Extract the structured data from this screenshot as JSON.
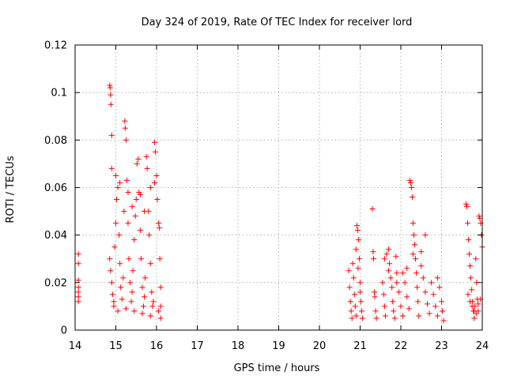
{
  "chart_data": {
    "type": "scatter",
    "title": "Day 324 of 2019, Rate Of TEC Index for receiver lord",
    "xlabel": "GPS time / hours",
    "ylabel": "ROTI / TECUs",
    "xlim": [
      14,
      24
    ],
    "ylim": [
      0,
      0.12
    ],
    "grid": true,
    "marker": "+",
    "x_ticks": [
      "14",
      "15",
      "16",
      "17",
      "18",
      "19",
      "20",
      "21",
      "22",
      "23",
      "24"
    ],
    "y_ticks": [
      "0",
      "0.02",
      "0.04",
      "0.06",
      "0.08",
      "0.1",
      "0.12"
    ],
    "colors": {
      "series": "#ff0000",
      "grid": "#a0a0a0",
      "axis": "#000000"
    },
    "series": [
      {
        "points": [
          [
            14.08,
            0.032
          ],
          [
            14.08,
            0.028
          ],
          [
            14.08,
            0.021
          ],
          [
            14.08,
            0.018
          ],
          [
            14.08,
            0.016
          ],
          [
            14.08,
            0.014
          ],
          [
            14.08,
            0.012
          ],
          [
            14.85,
            0.103
          ],
          [
            14.86,
            0.102
          ],
          [
            14.87,
            0.099
          ],
          [
            14.88,
            0.095
          ],
          [
            14.9,
            0.082
          ],
          [
            14.85,
            0.03
          ],
          [
            14.87,
            0.025
          ],
          [
            14.9,
            0.02
          ],
          [
            14.92,
            0.015
          ],
          [
            14.95,
            0.012
          ],
          [
            14.97,
            0.035
          ],
          [
            15.0,
            0.045
          ],
          [
            15.02,
            0.055
          ],
          [
            15.05,
            0.06
          ],
          [
            15.08,
            0.04
          ],
          [
            15.1,
            0.028
          ],
          [
            15.12,
            0.018
          ],
          [
            15.15,
            0.013
          ],
          [
            15.18,
            0.022
          ],
          [
            15.2,
            0.05
          ],
          [
            15.22,
            0.088
          ],
          [
            15.23,
            0.085
          ],
          [
            15.25,
            0.08
          ],
          [
            15.27,
            0.063
          ],
          [
            15.3,
            0.045
          ],
          [
            15.32,
            0.03
          ],
          [
            15.35,
            0.02
          ],
          [
            15.38,
            0.012
          ],
          [
            15.4,
            0.016
          ],
          [
            15.42,
            0.025
          ],
          [
            15.45,
            0.038
          ],
          [
            15.48,
            0.048
          ],
          [
            15.5,
            0.055
          ],
          [
            15.52,
            0.07
          ],
          [
            15.55,
            0.072
          ],
          [
            15.57,
            0.058
          ],
          [
            15.6,
            0.042
          ],
          [
            15.62,
            0.03
          ],
          [
            15.65,
            0.018
          ],
          [
            15.68,
            0.01
          ],
          [
            15.7,
            0.014
          ],
          [
            15.72,
            0.022
          ],
          [
            15.75,
            0.073
          ],
          [
            15.77,
            0.068
          ],
          [
            15.8,
            0.05
          ],
          [
            15.82,
            0.04
          ],
          [
            15.85,
            0.028
          ],
          [
            15.88,
            0.016
          ],
          [
            15.9,
            0.01
          ],
          [
            15.92,
            0.012
          ],
          [
            15.95,
            0.079
          ],
          [
            15.97,
            0.075
          ],
          [
            16.0,
            0.065
          ],
          [
            16.02,
            0.055
          ],
          [
            16.05,
            0.045
          ],
          [
            16.07,
            0.043
          ],
          [
            16.08,
            0.03
          ],
          [
            16.1,
            0.018
          ],
          [
            16.1,
            0.01
          ],
          [
            16.1,
            0.005
          ],
          [
            14.9,
            0.068
          ],
          [
            15.0,
            0.065
          ],
          [
            15.1,
            0.062
          ],
          [
            15.3,
            0.058
          ],
          [
            15.4,
            0.052
          ],
          [
            15.6,
            0.057
          ],
          [
            15.7,
            0.05
          ],
          [
            15.85,
            0.06
          ],
          [
            15.95,
            0.062
          ],
          [
            14.95,
            0.01
          ],
          [
            15.05,
            0.008
          ],
          [
            15.25,
            0.009
          ],
          [
            15.45,
            0.008
          ],
          [
            15.65,
            0.007
          ],
          [
            15.85,
            0.006
          ],
          [
            16.05,
            0.008
          ],
          [
            20.72,
            0.025
          ],
          [
            20.74,
            0.018
          ],
          [
            20.76,
            0.012
          ],
          [
            20.78,
            0.008
          ],
          [
            20.8,
            0.005
          ],
          [
            20.82,
            0.028
          ],
          [
            20.84,
            0.022
          ],
          [
            20.86,
            0.015
          ],
          [
            20.88,
            0.01
          ],
          [
            20.9,
            0.006
          ],
          [
            20.92,
            0.044
          ],
          [
            20.94,
            0.042
          ],
          [
            20.96,
            0.038
          ],
          [
            20.98,
            0.03
          ],
          [
            21.0,
            0.02
          ],
          [
            21.02,
            0.012
          ],
          [
            21.04,
            0.008
          ],
          [
            21.06,
            0.005
          ],
          [
            20.9,
            0.034
          ],
          [
            20.95,
            0.026
          ],
          [
            21.0,
            0.016
          ],
          [
            21.3,
            0.051
          ],
          [
            21.32,
            0.033
          ],
          [
            21.33,
            0.03
          ],
          [
            21.35,
            0.016
          ],
          [
            21.36,
            0.014
          ],
          [
            21.38,
            0.008
          ],
          [
            21.4,
            0.005
          ],
          [
            21.55,
            0.02
          ],
          [
            21.58,
            0.015
          ],
          [
            21.6,
            0.01
          ],
          [
            21.62,
            0.006
          ],
          [
            21.65,
            0.032
          ],
          [
            21.7,
            0.034
          ],
          [
            21.72,
            0.028
          ],
          [
            21.75,
            0.022
          ],
          [
            21.78,
            0.018
          ],
          [
            21.8,
            0.012
          ],
          [
            21.82,
            0.008
          ],
          [
            21.85,
            0.005
          ],
          [
            21.88,
            0.031
          ],
          [
            21.9,
            0.024
          ],
          [
            21.95,
            0.016
          ],
          [
            22.0,
            0.01
          ],
          [
            22.05,
            0.006
          ],
          [
            22.1,
            0.02
          ],
          [
            22.15,
            0.014
          ],
          [
            22.2,
            0.009
          ],
          [
            22.22,
            0.063
          ],
          [
            22.24,
            0.062
          ],
          [
            22.26,
            0.06
          ],
          [
            22.28,
            0.056
          ],
          [
            22.3,
            0.045
          ],
          [
            22.32,
            0.04
          ],
          [
            22.34,
            0.036
          ],
          [
            22.36,
            0.03
          ],
          [
            22.38,
            0.024
          ],
          [
            22.4,
            0.018
          ],
          [
            22.42,
            0.012
          ],
          [
            22.44,
            0.006
          ],
          [
            22.5,
            0.027
          ],
          [
            22.55,
            0.022
          ],
          [
            22.6,
            0.016
          ],
          [
            22.65,
            0.011
          ],
          [
            22.6,
            0.04
          ],
          [
            22.7,
            0.007
          ],
          [
            22.75,
            0.02
          ],
          [
            22.8,
            0.015
          ],
          [
            22.85,
            0.01
          ],
          [
            22.9,
            0.006
          ],
          [
            22.95,
            0.018
          ],
          [
            23.0,
            0.012
          ],
          [
            23.02,
            0.008
          ],
          [
            23.05,
            0.004
          ],
          [
            22.15,
            0.026
          ],
          [
            22.3,
            0.032
          ],
          [
            22.5,
            0.033
          ],
          [
            22.9,
            0.022
          ],
          [
            21.6,
            0.03
          ],
          [
            21.7,
            0.025
          ],
          [
            21.9,
            0.02
          ],
          [
            22.05,
            0.024
          ],
          [
            23.6,
            0.053
          ],
          [
            23.62,
            0.052
          ],
          [
            23.64,
            0.045
          ],
          [
            23.66,
            0.038
          ],
          [
            23.68,
            0.032
          ],
          [
            23.7,
            0.027
          ],
          [
            23.72,
            0.022
          ],
          [
            23.74,
            0.017
          ],
          [
            23.76,
            0.012
          ],
          [
            23.78,
            0.008
          ],
          [
            23.8,
            0.005
          ],
          [
            23.82,
            0.01
          ],
          [
            23.84,
            0.03
          ],
          [
            23.86,
            0.02
          ],
          [
            23.88,
            0.013
          ],
          [
            23.9,
            0.008
          ],
          [
            23.92,
            0.048
          ],
          [
            23.94,
            0.047
          ],
          [
            23.96,
            0.045
          ],
          [
            23.98,
            0.04
          ],
          [
            24.0,
            0.035
          ],
          [
            23.65,
            0.015
          ],
          [
            23.7,
            0.012
          ],
          [
            23.75,
            0.01
          ],
          [
            23.8,
            0.008
          ],
          [
            23.85,
            0.007
          ],
          [
            23.9,
            0.011
          ],
          [
            23.95,
            0.013
          ]
        ]
      }
    ]
  }
}
